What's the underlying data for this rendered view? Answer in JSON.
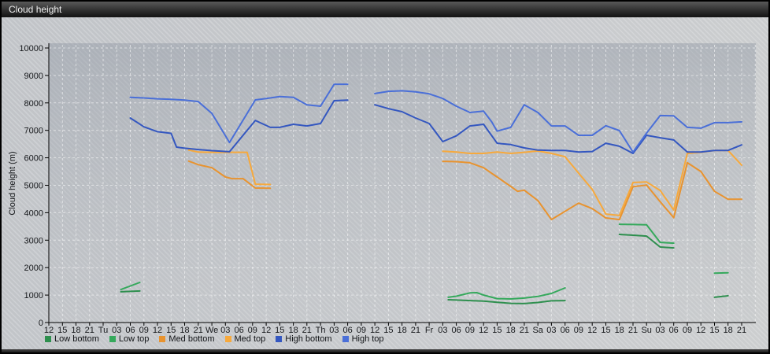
{
  "window": {
    "title": "Cloud height"
  },
  "chart_data": {
    "type": "line",
    "title": "Cloud height",
    "ylabel": "Cloud height (m)",
    "ylim": [
      0,
      10000
    ],
    "y_ticks": [
      0,
      1000,
      2000,
      3000,
      4000,
      5000,
      6000,
      7000,
      8000,
      9000,
      10000
    ],
    "x_tick_labels": [
      "12",
      "15",
      "18",
      "21",
      "Tu",
      "03",
      "06",
      "09",
      "12",
      "15",
      "18",
      "21",
      "We",
      "03",
      "06",
      "09",
      "12",
      "15",
      "18",
      "21",
      "Th",
      "03",
      "06",
      "09",
      "12",
      "15",
      "18",
      "21",
      "Fr",
      "03",
      "06",
      "09",
      "12",
      "15",
      "18",
      "21",
      "Sa",
      "03",
      "06",
      "09",
      "12",
      "15",
      "18",
      "21",
      "Su",
      "03",
      "06",
      "09",
      "12",
      "15",
      "18",
      "21"
    ],
    "grid": true,
    "grid_color": "rgba(255,255,255,0.55)",
    "legend_position": "bottom",
    "series": [
      {
        "name": "Low bottom",
        "color": "#2e8f4e",
        "segments": [
          [
            [
              5.3,
              1120
            ],
            [
              6.7,
              1150
            ]
          ],
          [
            [
              29.4,
              830
            ],
            [
              30,
              820
            ],
            [
              31,
              800
            ],
            [
              32,
              780
            ],
            [
              33,
              740
            ],
            [
              34,
              700
            ],
            [
              35,
              690
            ],
            [
              36,
              730
            ],
            [
              37,
              790
            ],
            [
              38,
              800
            ]
          ],
          [
            [
              42,
              3210
            ],
            [
              43,
              3180
            ],
            [
              44,
              3150
            ],
            [
              45,
              2750
            ],
            [
              46,
              2720
            ]
          ],
          [
            [
              49,
              920
            ],
            [
              50,
              975
            ]
          ]
        ]
      },
      {
        "name": "Low top",
        "color": "#35a95c",
        "segments": [
          [
            [
              5.3,
              1200
            ],
            [
              6.7,
              1460
            ]
          ],
          [
            [
              29.4,
              920
            ],
            [
              30,
              960
            ],
            [
              31,
              1080
            ],
            [
              31.5,
              1090
            ],
            [
              32,
              1000
            ],
            [
              33,
              870
            ],
            [
              34,
              860
            ],
            [
              35,
              890
            ],
            [
              36,
              950
            ],
            [
              37,
              1060
            ],
            [
              38,
              1260
            ]
          ],
          [
            [
              42,
              3580
            ],
            [
              43,
              3570
            ],
            [
              44,
              3560
            ],
            [
              45,
              2920
            ],
            [
              46,
              2890
            ]
          ],
          [
            [
              49,
              1800
            ],
            [
              50,
              1810
            ]
          ]
        ]
      },
      {
        "name": "Med bottom",
        "color": "#e8932f",
        "segments": [
          [
            [
              10.3,
              5880
            ],
            [
              11,
              5750
            ],
            [
              12,
              5640
            ],
            [
              13,
              5300
            ],
            [
              13.5,
              5240
            ],
            [
              14.3,
              5240
            ],
            [
              15.2,
              4900
            ],
            [
              16.3,
              4890
            ]
          ],
          [
            [
              29,
              5870
            ],
            [
              30,
              5860
            ],
            [
              31,
              5820
            ],
            [
              32,
              5640
            ],
            [
              33,
              5300
            ],
            [
              34,
              4960
            ],
            [
              34.5,
              4780
            ],
            [
              35,
              4820
            ],
            [
              36,
              4440
            ],
            [
              37,
              3750
            ],
            [
              39,
              4350
            ],
            [
              40,
              4150
            ],
            [
              41,
              3810
            ],
            [
              42,
              3750
            ],
            [
              43,
              4950
            ],
            [
              44,
              5010
            ],
            [
              45,
              4400
            ],
            [
              46,
              3820
            ],
            [
              47,
              5820
            ],
            [
              48,
              5500
            ],
            [
              49,
              4780
            ],
            [
              50,
              4490
            ],
            [
              51,
              4490
            ]
          ]
        ]
      },
      {
        "name": "Med top",
        "color": "#f7a93c",
        "segments": [
          [
            [
              10.3,
              6280
            ],
            [
              11,
              6210
            ],
            [
              12,
              6200
            ],
            [
              14.6,
              6200
            ],
            [
              15.2,
              5040
            ],
            [
              16.3,
              5030
            ]
          ],
          [
            [
              29,
              6240
            ],
            [
              30,
              6210
            ],
            [
              31,
              6160
            ],
            [
              32,
              6160
            ],
            [
              33,
              6210
            ],
            [
              34,
              6160
            ],
            [
              35,
              6200
            ],
            [
              36,
              6250
            ],
            [
              37,
              6160
            ],
            [
              38,
              6040
            ],
            [
              39,
              5440
            ],
            [
              40,
              4850
            ],
            [
              41,
              3950
            ],
            [
              42,
              3900
            ],
            [
              43,
              5100
            ],
            [
              44,
              5120
            ],
            [
              45,
              4810
            ],
            [
              46,
              4100
            ],
            [
              47,
              6160
            ],
            [
              48,
              6200
            ],
            [
              49,
              6270
            ],
            [
              50,
              6270
            ],
            [
              51,
              5730
            ]
          ]
        ]
      },
      {
        "name": "High bottom",
        "color": "#3457c0",
        "segments": [
          [
            [
              6,
              7450
            ],
            [
              7,
              7130
            ],
            [
              8,
              6950
            ],
            [
              9,
              6890
            ],
            [
              9.4,
              6390
            ],
            [
              10,
              6350
            ],
            [
              11,
              6300
            ],
            [
              12,
              6260
            ],
            [
              13.3,
              6220
            ],
            [
              15.2,
              7360
            ],
            [
              16.3,
              7110
            ],
            [
              17,
              7110
            ],
            [
              18,
              7220
            ],
            [
              19,
              7160
            ],
            [
              20,
              7250
            ],
            [
              21,
              8080
            ],
            [
              22,
              8100
            ]
          ],
          [
            [
              24,
              7930
            ],
            [
              25,
              7790
            ],
            [
              26,
              7680
            ],
            [
              27,
              7450
            ],
            [
              28,
              7250
            ],
            [
              29,
              6590
            ],
            [
              30,
              6800
            ],
            [
              31,
              7160
            ],
            [
              32,
              7220
            ],
            [
              33,
              6530
            ],
            [
              34,
              6480
            ],
            [
              35,
              6360
            ],
            [
              36,
              6280
            ],
            [
              37,
              6270
            ],
            [
              38,
              6270
            ],
            [
              39,
              6210
            ],
            [
              40,
              6230
            ],
            [
              41,
              6530
            ],
            [
              42,
              6420
            ],
            [
              43,
              6160
            ],
            [
              44,
              6820
            ],
            [
              45,
              6730
            ],
            [
              46,
              6650
            ],
            [
              47,
              6210
            ],
            [
              48,
              6210
            ],
            [
              49,
              6270
            ],
            [
              50,
              6270
            ],
            [
              51,
              6470
            ]
          ]
        ]
      },
      {
        "name": "High top",
        "color": "#4a6fd8",
        "segments": [
          [
            [
              6,
              8200
            ],
            [
              7,
              8180
            ],
            [
              8,
              8150
            ],
            [
              9,
              8130
            ],
            [
              10,
              8100
            ],
            [
              11,
              8050
            ],
            [
              12,
              7620
            ],
            [
              13.3,
              6560
            ],
            [
              15.2,
              8110
            ],
            [
              16,
              8160
            ],
            [
              17,
              8230
            ],
            [
              18,
              8200
            ],
            [
              19,
              7930
            ],
            [
              20,
              7880
            ],
            [
              21,
              8680
            ],
            [
              22,
              8680
            ]
          ],
          [
            [
              24,
              8340
            ],
            [
              25,
              8420
            ],
            [
              26,
              8440
            ],
            [
              27,
              8400
            ],
            [
              28,
              8330
            ],
            [
              29,
              8160
            ],
            [
              30,
              7880
            ],
            [
              31,
              7650
            ],
            [
              32,
              7700
            ],
            [
              32.6,
              7310
            ],
            [
              33,
              6970
            ],
            [
              34,
              7110
            ],
            [
              35,
              7930
            ],
            [
              36,
              7650
            ],
            [
              37,
              7160
            ],
            [
              38,
              7160
            ],
            [
              39,
              6820
            ],
            [
              40,
              6820
            ],
            [
              41,
              7170
            ],
            [
              42,
              6990
            ],
            [
              43,
              6210
            ],
            [
              44,
              6900
            ],
            [
              45,
              7540
            ],
            [
              46,
              7530
            ],
            [
              47,
              7110
            ],
            [
              48,
              7080
            ],
            [
              49,
              7280
            ],
            [
              50,
              7280
            ],
            [
              51,
              7310
            ]
          ]
        ]
      }
    ]
  }
}
